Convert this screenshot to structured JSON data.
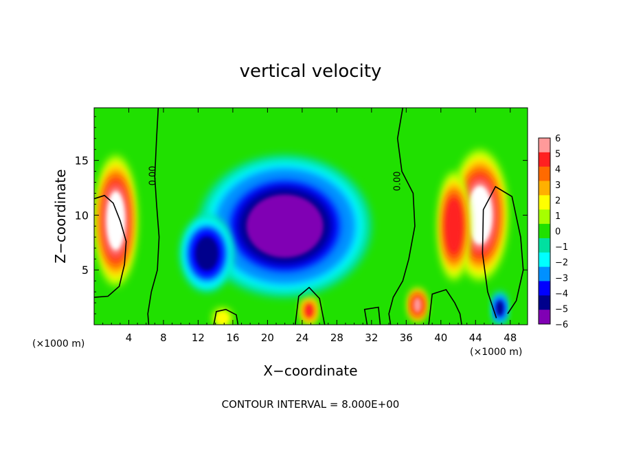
{
  "chart_data": {
    "type": "heatmap",
    "title": "vertical velocity",
    "xlabel": "X−coordinate",
    "ylabel": "Z−coordinate",
    "x_unit_left": "(×1000 m)",
    "x_unit_right": "(×1000 m)",
    "xlim": [
      0,
      50
    ],
    "ylim": [
      0,
      19.8
    ],
    "x_ticks": [
      4,
      8,
      12,
      16,
      20,
      24,
      28,
      32,
      36,
      40,
      44,
      48
    ],
    "x_tick_labels": [
      "4",
      "8",
      "12",
      "16",
      "20",
      "24",
      "28",
      "32",
      "36",
      "40",
      "44",
      "48"
    ],
    "y_ticks": [
      5,
      10,
      15
    ],
    "y_tick_labels": [
      "5",
      "10",
      "15"
    ],
    "colorbar": {
      "range": [
        -6,
        6
      ],
      "ticks": [
        6,
        5,
        4,
        3,
        2,
        1,
        0,
        -1,
        -2,
        -3,
        -4,
        -5,
        -6
      ],
      "tick_labels": [
        "6",
        "5",
        "4",
        "3",
        "2",
        "1",
        "0",
        "−1",
        "−2",
        "−3",
        "−4",
        "−5",
        "−6"
      ],
      "colors": [
        "#ff9a9a",
        "#ff2020",
        "#ff6a00",
        "#ffb000",
        "#ffff00",
        "#a6ff00",
        "#20e000",
        "#00e0a0",
        "#00ffff",
        "#0090ff",
        "#0000ff",
        "#00008c",
        "#8000b4"
      ]
    },
    "contour_labels": [
      "0.00",
      "0.00"
    ],
    "footer": "CONTOUR INTERVAL = 8.000E+00",
    "out_of_range_color": "#ffffff",
    "field_regions": [
      {
        "kind": "background",
        "value": 0.3
      },
      {
        "kind": "updraft",
        "x": 2.5,
        "z": 9.5,
        "wx": 2.4,
        "wz": 6.0,
        "value": 6.5
      },
      {
        "kind": "updraft",
        "x": 44.5,
        "z": 10.0,
        "wx": 3.2,
        "wz": 6.0,
        "value": 6.5
      },
      {
        "kind": "updraft",
        "x": 41.5,
        "z": 9.0,
        "wx": 1.8,
        "wz": 5.0,
        "value": 5.5
      },
      {
        "kind": "updraft",
        "x": 24.8,
        "z": 1.3,
        "wx": 0.9,
        "wz": 1.3,
        "value": 5.0
      },
      {
        "kind": "updraft",
        "x": 37.3,
        "z": 1.8,
        "wx": 1.0,
        "wz": 1.5,
        "value": 6.0
      },
      {
        "kind": "updraft",
        "x": 14.8,
        "z": 0.6,
        "wx": 1.1,
        "wz": 0.9,
        "value": 2.5
      },
      {
        "kind": "downdraft",
        "x": 22.0,
        "z": 9.0,
        "wx": 10.0,
        "wz": 6.5,
        "value": -5.5
      },
      {
        "kind": "downdraft",
        "x": 13.0,
        "z": 6.5,
        "wx": 3.0,
        "wz": 3.5,
        "value": -5.0
      },
      {
        "kind": "downdraft",
        "x": 46.8,
        "z": 1.5,
        "wx": 0.8,
        "wz": 1.5,
        "value": -4.5
      }
    ]
  }
}
